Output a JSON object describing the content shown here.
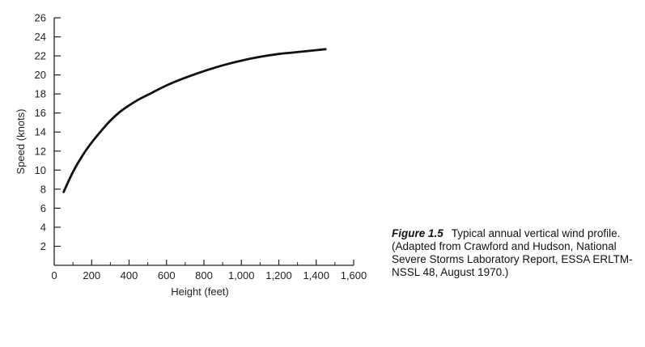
{
  "chart_data": {
    "type": "line",
    "title": "",
    "xlabel": "Height (feet)",
    "ylabel": "Speed (knots)",
    "xlim": [
      0,
      1600
    ],
    "ylim": [
      0,
      26
    ],
    "x_ticks": [
      0,
      200,
      400,
      600,
      800,
      1000,
      1200,
      1400,
      1600
    ],
    "x_tick_labels": [
      "0",
      "200",
      "400",
      "600",
      "800",
      "1,000",
      "1,200",
      "1,400",
      "1,600"
    ],
    "y_ticks": [
      2,
      4,
      6,
      8,
      10,
      12,
      14,
      16,
      18,
      20,
      22,
      24,
      26
    ],
    "y_tick_labels": [
      "2",
      "4",
      "6",
      "8",
      "10",
      "12",
      "14",
      "16",
      "18",
      "20",
      "22",
      "24",
      "26"
    ],
    "grid": false,
    "series": [
      {
        "x": [
          50,
          100,
          150,
          200,
          250,
          300,
          350,
          400,
          450,
          500,
          600,
          700,
          800,
          900,
          1000,
          1100,
          1200,
          1300,
          1400,
          1450
        ],
        "y": [
          7.7,
          9.8,
          11.5,
          12.9,
          14.1,
          15.2,
          16.1,
          16.8,
          17.4,
          17.9,
          18.9,
          19.7,
          20.4,
          21.0,
          21.5,
          21.9,
          22.2,
          22.4,
          22.6,
          22.7
        ]
      }
    ]
  },
  "caption": {
    "figure_number": "Figure 1.5",
    "text": "Typical annual vertical wind profile. (Adapted from Crawford and Hudson, National Severe Storms Laboratory Report, ESSA ERLTM-NSSL 48, August 1970.)"
  }
}
